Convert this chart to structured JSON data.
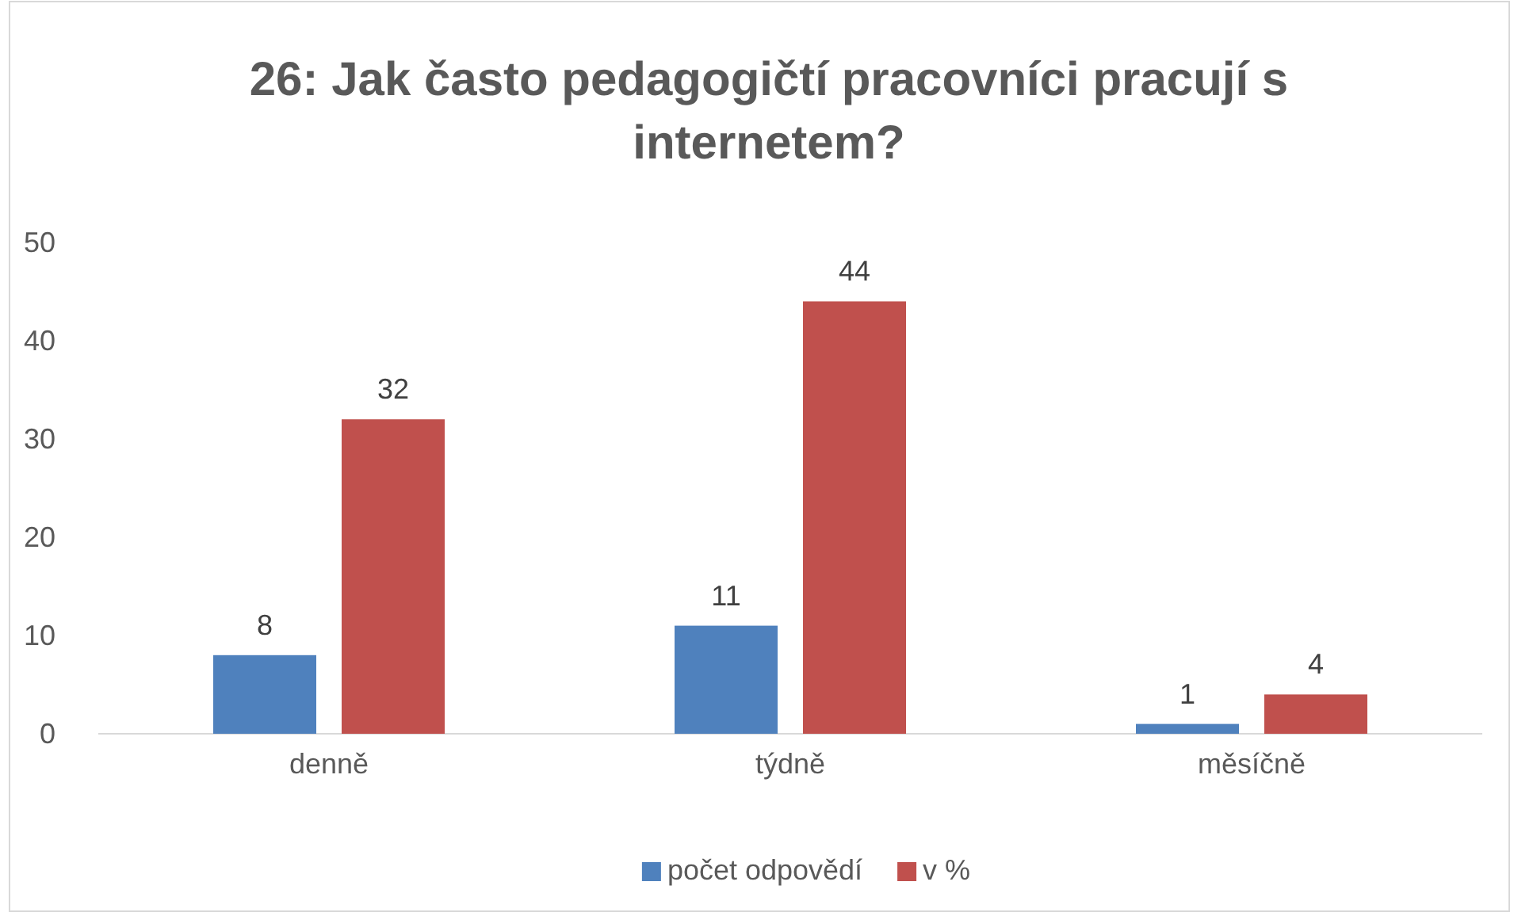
{
  "chart_data": {
    "type": "bar",
    "title": "26: Jak často pedagogičtí pracovníci pracují s internetem?",
    "categories": [
      "denně",
      "týdně",
      "měsíčně"
    ],
    "series": [
      {
        "name": "počet odpovědí",
        "color": "#4f81bd",
        "values": [
          8,
          11,
          1
        ]
      },
      {
        "name": "v %",
        "color": "#c0504d",
        "values": [
          32,
          44,
          4
        ]
      }
    ],
    "ylim": [
      0,
      50
    ],
    "yticks": [
      0,
      10,
      20,
      30,
      40,
      50
    ],
    "grid": false,
    "legend": "bottom",
    "data_labels": true
  }
}
